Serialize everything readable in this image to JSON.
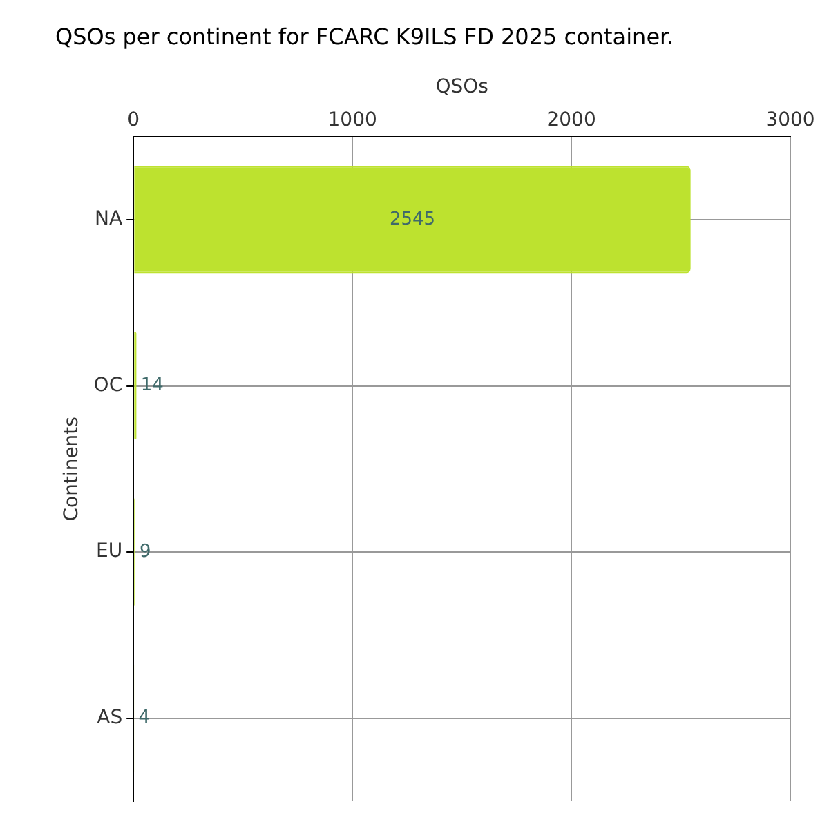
{
  "chart_data": {
    "type": "bar",
    "orientation": "horizontal",
    "title": "QSOs per continent for FCARC K9ILS FD 2025 container.",
    "xlabel": "QSOs",
    "ylabel": "Continents",
    "categories": [
      "NA",
      "OC",
      "EU",
      "AS"
    ],
    "values": [
      2545,
      14,
      9,
      4
    ],
    "color": "#bde22f",
    "xlim": [
      0,
      3000
    ],
    "xticks": [
      0,
      1000,
      2000,
      3000
    ],
    "grid": true,
    "data_labels": true,
    "legend": false
  }
}
